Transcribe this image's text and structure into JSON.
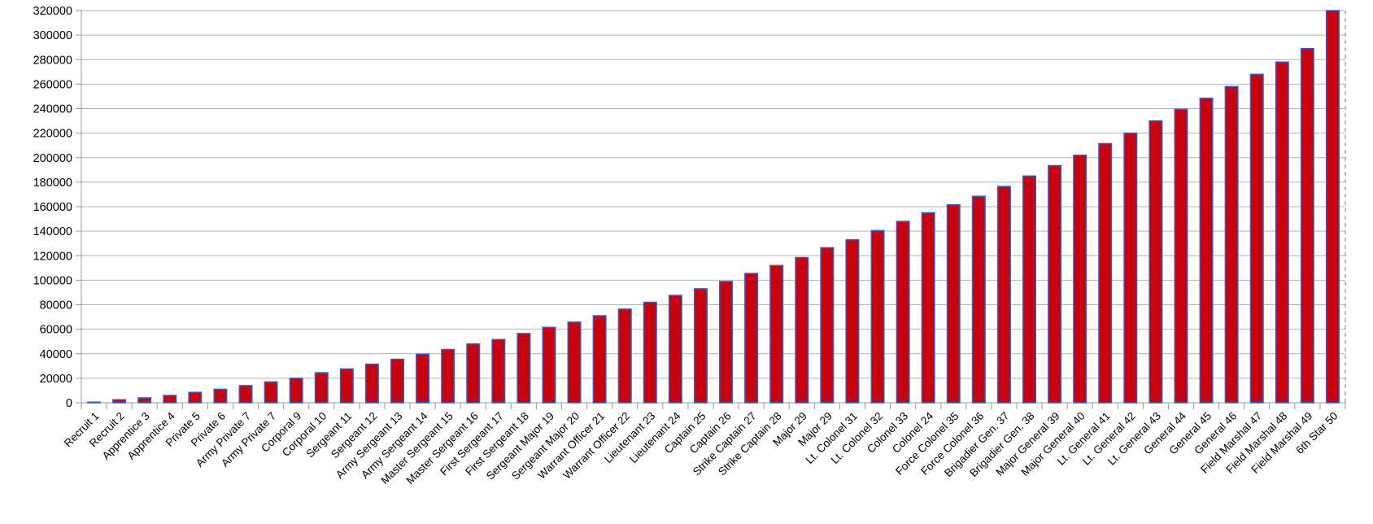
{
  "chart_data": {
    "type": "bar",
    "title": "",
    "xlabel": "",
    "ylabel": "",
    "categories": [
      "Recruit 1",
      "Recruit 2",
      "Apprentice 3",
      "Apprentice 4",
      "Private 5",
      "Private 6",
      "Army Private 7",
      "Army Private 7",
      "Corporal 9",
      "Corporal 10",
      "Sergeant 11",
      "Sergeant 12",
      "Army Sergeant 13",
      "Army Sergeant 14",
      "Master Sergeant 15",
      "Master Sergeant 16",
      "First Sergeant 17",
      "First Sergeant 18",
      "Sergeant Major 19",
      "Sergeant Major 20",
      "Warrant Officer 21",
      "Warrant Officer 22",
      "Lieutenant 23",
      "Lieutenant 24",
      "Captain 25",
      "Captain 26",
      "Strike Captain 27",
      "Strike Captain 28",
      "Major 29",
      "Major 29",
      "Lt. Colonel 31",
      "Lt. Colonel 32",
      "Colonel 33",
      "Colonel 24",
      "Force Colonel 35",
      "Force Colonel 36",
      "Brigadier Gen. 37",
      "Brigadier Gen. 38",
      "Major General 39",
      "Major General 40",
      "Lt. General 41",
      "Lt. General 42",
      "Lt. General 43",
      "General 44",
      "General 45",
      "General 46",
      "Field Marshal 47",
      "Field Marshal 48",
      "Field Marshal 49",
      "6th Star 50"
    ],
    "values": [
      500,
      2500,
      4000,
      6000,
      8500,
      11000,
      14000,
      17000,
      20000,
      24500,
      27600,
      31500,
      35500,
      39700,
      43500,
      48000,
      51600,
      56500,
      61500,
      65800,
      71000,
      76400,
      82000,
      87600,
      93000,
      99000,
      105500,
      112000,
      118500,
      126500,
      133000,
      140500,
      148000,
      155000,
      161500,
      168500,
      176500,
      185000,
      193500,
      202000,
      211500,
      220000,
      230000,
      239500,
      248500,
      258000,
      268000,
      278000,
      289000,
      320000
    ],
    "ylim": [
      0,
      320000
    ],
    "ytick_step": 20000,
    "ytick_labels": [
      "0",
      "20000",
      "40000",
      "60000",
      "80000",
      "100000",
      "120000",
      "140000",
      "160000",
      "180000",
      "200000",
      "220000",
      "240000",
      "260000",
      "280000",
      "300000",
      "320000"
    ],
    "grid": true,
    "legend": "none",
    "colors": {
      "bar_fill": "#c9020e",
      "bar_border": "#2563c8",
      "gridline": "#b3b3b3",
      "axis_line": "#999999",
      "dashed_border": "#aaaaaa",
      "background": "#ffffff",
      "text": "#000000"
    }
  }
}
